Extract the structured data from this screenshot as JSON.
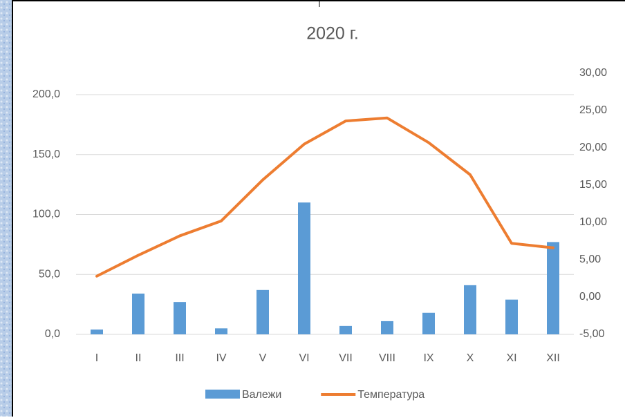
{
  "chart_data": {
    "type": "bar_line",
    "title": "2020 г.",
    "categories": [
      "I",
      "II",
      "III",
      "IV",
      "V",
      "VI",
      "VII",
      "VIII",
      "IX",
      "X",
      "XI",
      "XII"
    ],
    "series": [
      {
        "name": "Валежи",
        "color": "#5b9bd5",
        "type": "bar",
        "values": [
          4,
          34,
          27,
          5,
          37,
          110,
          7,
          11,
          18,
          41,
          29,
          77
        ]
      },
      {
        "name": "Температура",
        "color": "#ed7d31",
        "type": "line",
        "axis": "y2",
        "values": [
          2.8,
          5.6,
          8.2,
          10.2,
          15.7,
          20.5,
          23.6,
          24,
          20.7,
          16.4,
          7.2,
          6.6
        ]
      }
    ],
    "ylim": [
      0,
      200
    ],
    "yticks": [
      {
        "value": 0,
        "label": "0,0"
      },
      {
        "value": 50,
        "label": "50,0"
      },
      {
        "value": 100,
        "label": "100,0"
      },
      {
        "value": 150,
        "label": "150,0"
      },
      {
        "value": 200,
        "label": "200,0"
      }
    ],
    "y2lim": [
      -5,
      30
    ],
    "y2ticks": [
      {
        "value": -5,
        "label": "-5,00"
      },
      {
        "value": 0,
        "label": "0,00"
      },
      {
        "value": 5,
        "label": "5,00"
      },
      {
        "value": 10,
        "label": "10,00"
      },
      {
        "value": 15,
        "label": "15,00"
      },
      {
        "value": 20,
        "label": "20,00"
      },
      {
        "value": 25,
        "label": "25,00"
      },
      {
        "value": 30,
        "label": "30,00"
      }
    ],
    "grid": true,
    "legend": "bottom"
  }
}
